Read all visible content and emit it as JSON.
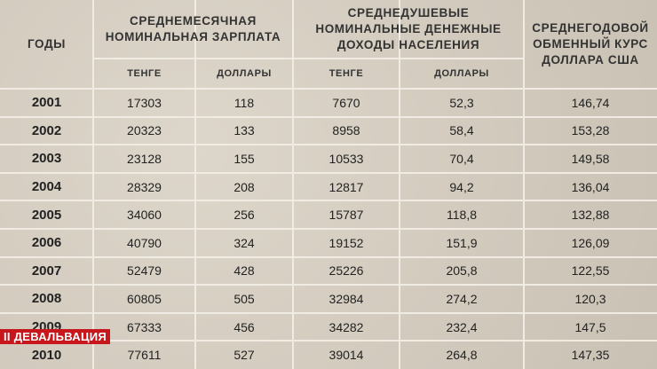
{
  "table": {
    "header": {
      "years": "ГОДЫ",
      "groups": [
        {
          "lines": [
            "СРЕДНЕМЕСЯЧНАЯ",
            "НОМИНАЛЬНАЯ ЗАРПЛАТА"
          ],
          "sub": [
            "ТЕНГЕ",
            "ДОЛЛАРЫ"
          ]
        },
        {
          "lines": [
            "СРЕДНЕДУШЕВЫЕ",
            "НОМИНАЛЬНЫЕ ДЕНЕЖНЫЕ",
            "ДОХОДЫ НАСЕЛЕНИЯ"
          ],
          "sub": [
            "ТЕНГЕ",
            "ДОЛЛАРЫ"
          ]
        }
      ],
      "rate": [
        "СРЕДНЕГОДОВОЙ",
        "ОБМЕННЫЙ КУРС",
        "ДОЛЛАРА США"
      ]
    },
    "rows": [
      [
        "2001",
        "17303",
        "118",
        "7670",
        "52,3",
        "146,74"
      ],
      [
        "2002",
        "20323",
        "133",
        "8958",
        "58,4",
        "153,28"
      ],
      [
        "2003",
        "23128",
        "155",
        "10533",
        "70,4",
        "149,58"
      ],
      [
        "2004",
        "28329",
        "208",
        "12817",
        "94,2",
        "136,04"
      ],
      [
        "2005",
        "34060",
        "256",
        "15787",
        "118,8",
        "132,88"
      ],
      [
        "2006",
        "40790",
        "324",
        "19152",
        "151,9",
        "126,09"
      ],
      [
        "2007",
        "52479",
        "428",
        "25226",
        "205,8",
        "122,55"
      ],
      [
        "2008",
        "60805",
        "505",
        "32984",
        "274,2",
        "120,3"
      ],
      [
        "2009",
        "67333",
        "456",
        "34282",
        "232,4",
        "147,5"
      ],
      [
        "2010",
        "77611",
        "527",
        "39014",
        "264,8",
        "147,35"
      ]
    ],
    "badge": "II ДЕВАЛЬВАЦИЯ"
  }
}
